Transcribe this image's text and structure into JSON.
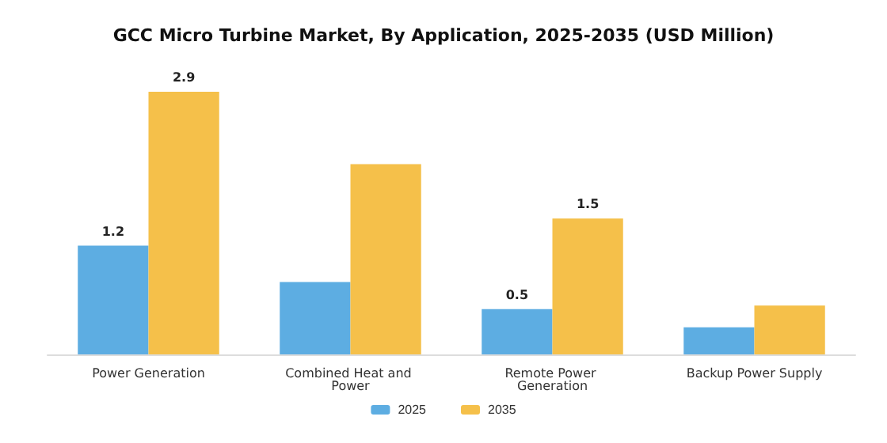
{
  "chart_data": {
    "type": "bar",
    "title": "GCC Micro Turbine Market, By Application, 2025-2035 (USD Million)",
    "categories": [
      "Power Generation",
      "Combined Heat and Power",
      "Remote Power Generation",
      "Backup Power Supply"
    ],
    "series": [
      {
        "name": "2025",
        "color": "#5dade2",
        "values": [
          1.2,
          0.8,
          0.5,
          0.3
        ],
        "value_labels": [
          "1.2",
          null,
          "0.5",
          null
        ]
      },
      {
        "name": "2035",
        "color": "#f5c04a",
        "values": [
          2.9,
          2.1,
          1.5,
          0.54
        ],
        "value_labels": [
          "2.9",
          null,
          "1.5",
          null
        ]
      }
    ],
    "legend": "bottom",
    "ylim": [
      0,
      2.9
    ]
  }
}
